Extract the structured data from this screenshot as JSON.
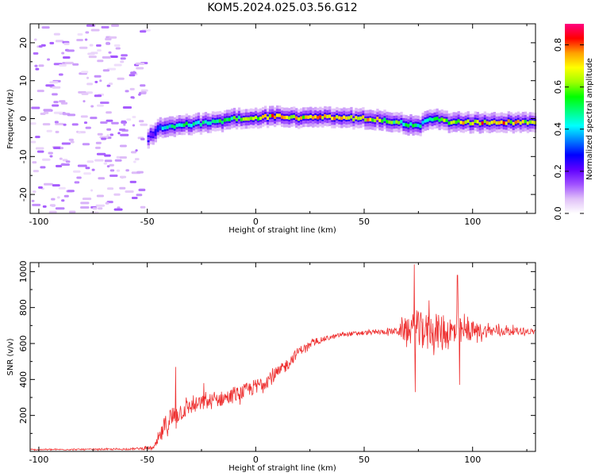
{
  "figure_title": "KOM5.2024.025.03.56.G12",
  "chart_data": [
    {
      "type": "heatmap",
      "xlabel": "Height of straight line (km)",
      "ylabel": "Frequency (Hz)",
      "xlim": [
        -104,
        129
      ],
      "ylim": [
        -25,
        25
      ],
      "x_ticks": [
        -100,
        -50,
        0,
        50,
        100
      ],
      "y_ticks": [
        -20,
        -10,
        0,
        10,
        20
      ],
      "grid": false,
      "colorbar": {
        "label": "Normalized spectral amplitude",
        "range": [
          0.0,
          0.9
        ],
        "ticks": [
          0.0,
          0.2,
          0.4,
          0.6,
          0.8
        ],
        "colors": [
          "#ffffff",
          "#e0c0f8",
          "#a050ff",
          "#6000ff",
          "#0000ff",
          "#0080ff",
          "#00ffff",
          "#00ff80",
          "#00ff00",
          "#a0ff00",
          "#ffff00",
          "#ffa000",
          "#ff0000",
          "#ff0080"
        ]
      },
      "noise_region": {
        "x_range": [
          -104,
          -50
        ],
        "freq_range": [
          -25,
          25
        ],
        "amplitude": 0.08
      },
      "signal_track": {
        "x": [
          -50,
          -45,
          -40,
          -30,
          -20,
          -10,
          0,
          10,
          20,
          30,
          40,
          50,
          60,
          70,
          75,
          80,
          90,
          100,
          110,
          120,
          129
        ],
        "freq": [
          -5,
          -2.5,
          -2,
          -1.5,
          -1,
          0,
          0.3,
          0.5,
          0.2,
          0.3,
          0.2,
          0,
          -0.5,
          -1.5,
          -2,
          0,
          -1,
          -1,
          -1,
          -1,
          -1
        ],
        "amplitude": [
          0.15,
          0.35,
          0.45,
          0.5,
          0.5,
          0.55,
          0.65,
          0.75,
          0.7,
          0.75,
          0.7,
          0.7,
          0.6,
          0.5,
          0.45,
          0.55,
          0.6,
          0.75,
          0.75,
          0.7,
          0.6
        ]
      }
    },
    {
      "type": "line",
      "xlabel": "Height of straight line (km)",
      "ylabel": "SNR (v/v)",
      "xlim": [
        -104,
        129
      ],
      "ylim": [
        0,
        1050
      ],
      "x_ticks": [
        -100,
        -50,
        0,
        50,
        100
      ],
      "y_ticks": [
        200,
        400,
        600,
        800,
        1000
      ],
      "grid": false,
      "series": [
        {
          "color": "#ee3030",
          "envelope_x": [
            -104,
            -60,
            -47,
            -45,
            -42,
            -40,
            -35,
            -30,
            -20,
            -10,
            0,
            10,
            15,
            20,
            25,
            30,
            40,
            50,
            60,
            65,
            70,
            75,
            80,
            90,
            100,
            110,
            120,
            129
          ],
          "envelope_y": [
            10,
            12,
            20,
            60,
            130,
            170,
            220,
            250,
            280,
            310,
            360,
            430,
            490,
            560,
            590,
            620,
            650,
            660,
            665,
            670,
            675,
            680,
            670,
            660,
            670,
            670,
            670,
            665
          ],
          "noise_amp": [
            3,
            4,
            10,
            30,
            60,
            80,
            55,
            45,
            45,
            40,
            45,
            40,
            35,
            25,
            20,
            15,
            12,
            12,
            15,
            20,
            80,
            100,
            90,
            100,
            50,
            30,
            20,
            15
          ],
          "spikes": [
            {
              "x": -37,
              "y": 470
            },
            {
              "x": -24,
              "y": 380
            },
            {
              "x": 73,
              "y": 1040
            },
            {
              "x": 73.5,
              "y": 330
            },
            {
              "x": 80,
              "y": 840
            },
            {
              "x": 93,
              "y": 980
            },
            {
              "x": 94,
              "y": 370
            }
          ]
        }
      ]
    }
  ]
}
